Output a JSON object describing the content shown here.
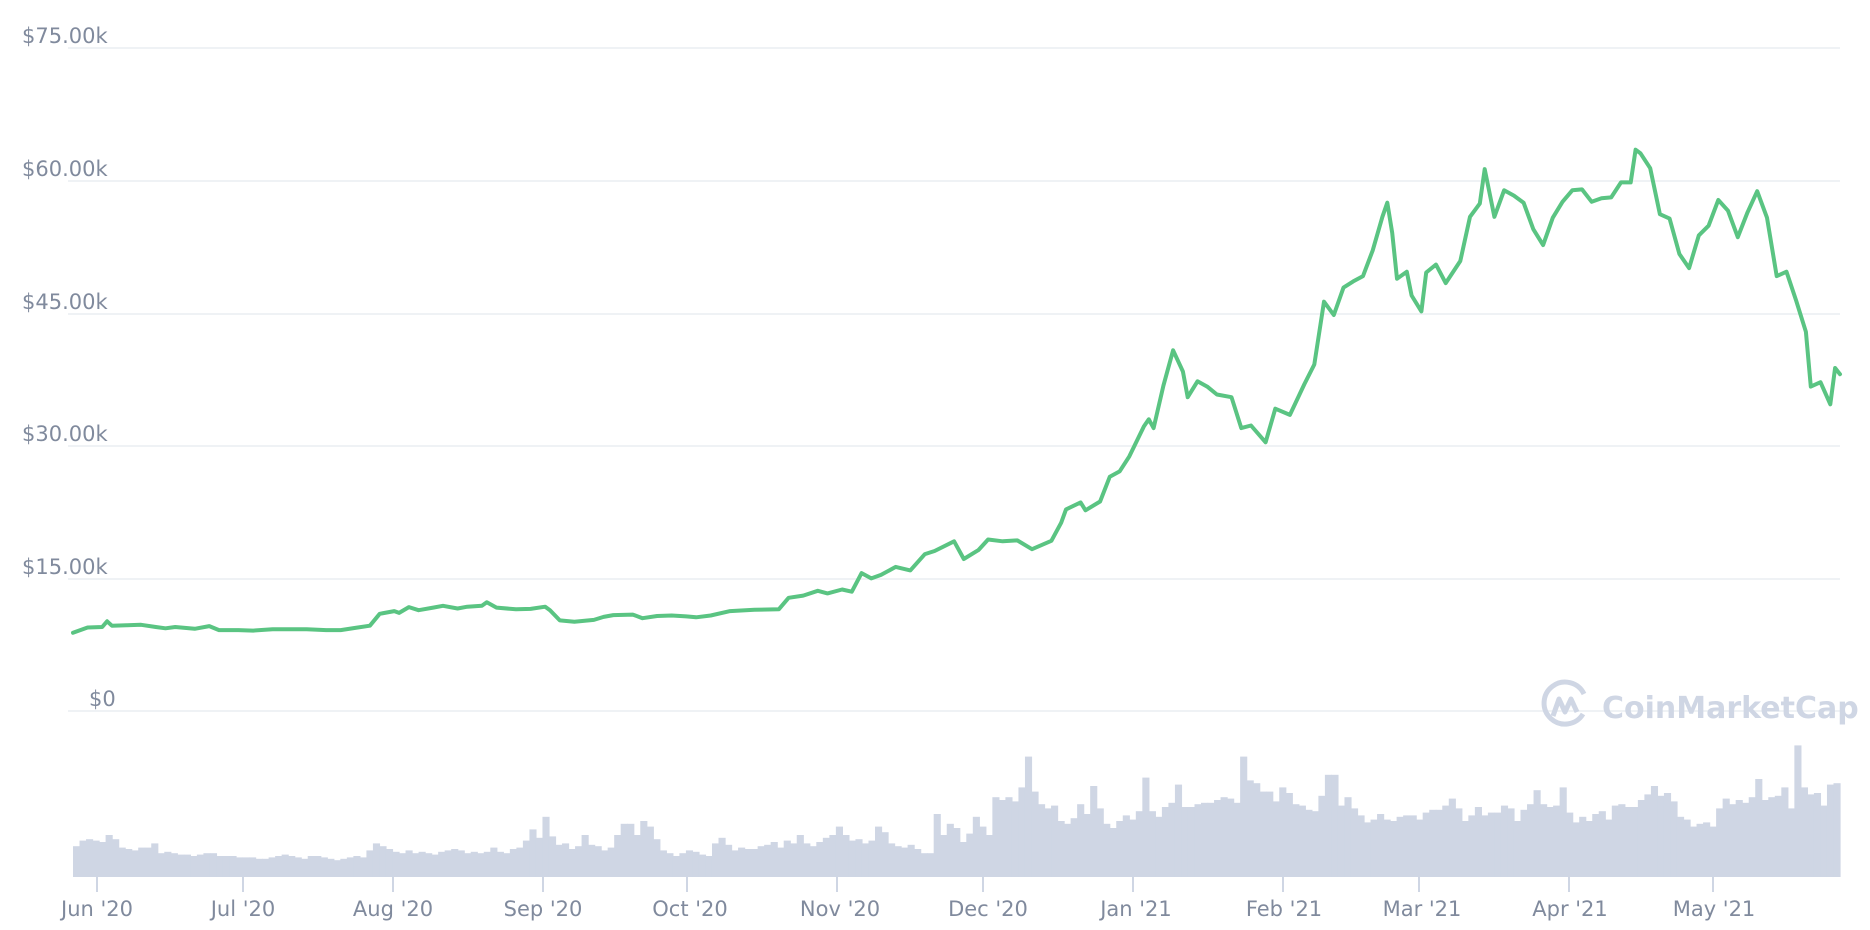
{
  "chart_data": {
    "type": "line",
    "title": "",
    "xlabel": "",
    "ylabel": "",
    "asset_hint": "Price (USD) with volume bars",
    "ylim": [
      0,
      75000
    ],
    "grid": true,
    "legend": null,
    "y_ticks": [
      "$0",
      "$15.00k",
      "$30.00k",
      "$45.00k",
      "$60.00k",
      "$75.00k"
    ],
    "y_tick_values": [
      0,
      15000,
      30000,
      45000,
      60000,
      75000
    ],
    "x_ticks": [
      "Jun '20",
      "Jul '20",
      "Aug '20",
      "Sep '20",
      "Oct '20",
      "Nov '20",
      "Dec '20",
      "Jan '21",
      "Feb '21",
      "Mar '21",
      "Apr '21",
      "May '21"
    ],
    "x_range": [
      "2020-05-27",
      "2021-05-25"
    ],
    "series": [
      {
        "name": "Price",
        "color": "#5ac482",
        "points": [
          [
            "2020-05-27",
            8850
          ],
          [
            "2020-05-30",
            9450
          ],
          [
            "2020-06-02",
            9500
          ],
          [
            "2020-06-03",
            10150
          ],
          [
            "2020-06-04",
            9650
          ],
          [
            "2020-06-07",
            9700
          ],
          [
            "2020-06-10",
            9750
          ],
          [
            "2020-06-13",
            9500
          ],
          [
            "2020-06-15",
            9350
          ],
          [
            "2020-06-17",
            9500
          ],
          [
            "2020-06-21",
            9300
          ],
          [
            "2020-06-24",
            9600
          ],
          [
            "2020-06-26",
            9150
          ],
          [
            "2020-06-30",
            9150
          ],
          [
            "2020-07-03",
            9100
          ],
          [
            "2020-07-07",
            9250
          ],
          [
            "2020-07-10",
            9250
          ],
          [
            "2020-07-14",
            9250
          ],
          [
            "2020-07-18",
            9150
          ],
          [
            "2020-07-21",
            9150
          ],
          [
            "2020-07-24",
            9400
          ],
          [
            "2020-07-27",
            9650
          ],
          [
            "2020-07-29",
            11000
          ],
          [
            "2020-08-01",
            11300
          ],
          [
            "2020-08-02",
            11100
          ],
          [
            "2020-08-04",
            11750
          ],
          [
            "2020-08-06",
            11400
          ],
          [
            "2020-08-09",
            11700
          ],
          [
            "2020-08-11",
            11900
          ],
          [
            "2020-08-14",
            11600
          ],
          [
            "2020-08-16",
            11800
          ],
          [
            "2020-08-19",
            11900
          ],
          [
            "2020-08-20",
            12300
          ],
          [
            "2020-08-22",
            11700
          ],
          [
            "2020-08-26",
            11500
          ],
          [
            "2020-08-29",
            11550
          ],
          [
            "2020-09-01",
            11800
          ],
          [
            "2020-09-02",
            11400
          ],
          [
            "2020-09-04",
            10250
          ],
          [
            "2020-09-07",
            10100
          ],
          [
            "2020-09-11",
            10300
          ],
          [
            "2020-09-13",
            10650
          ],
          [
            "2020-09-15",
            10850
          ],
          [
            "2020-09-19",
            10900
          ],
          [
            "2020-09-21",
            10500
          ],
          [
            "2020-09-24",
            10750
          ],
          [
            "2020-09-27",
            10800
          ],
          [
            "2020-09-30",
            10700
          ],
          [
            "2020-10-02",
            10600
          ],
          [
            "2020-10-05",
            10800
          ],
          [
            "2020-10-09",
            11300
          ],
          [
            "2020-10-14",
            11450
          ],
          [
            "2020-10-19",
            11500
          ],
          [
            "2020-10-21",
            12800
          ],
          [
            "2020-10-24",
            13050
          ],
          [
            "2020-10-27",
            13600
          ],
          [
            "2020-10-29",
            13300
          ],
          [
            "2020-11-01",
            13750
          ],
          [
            "2020-11-03",
            13500
          ],
          [
            "2020-11-05",
            15600
          ],
          [
            "2020-11-07",
            15000
          ],
          [
            "2020-11-09",
            15400
          ],
          [
            "2020-11-12",
            16300
          ],
          [
            "2020-11-15",
            15900
          ],
          [
            "2020-11-18",
            17750
          ],
          [
            "2020-11-20",
            18100
          ],
          [
            "2020-11-24",
            19200
          ],
          [
            "2020-11-26",
            17200
          ],
          [
            "2020-11-29",
            18200
          ],
          [
            "2020-12-01",
            19400
          ],
          [
            "2020-12-04",
            19200
          ],
          [
            "2020-12-07",
            19300
          ],
          [
            "2020-12-10",
            18300
          ],
          [
            "2020-12-14",
            19250
          ],
          [
            "2020-12-16",
            21300
          ],
          [
            "2020-12-17",
            22800
          ],
          [
            "2020-12-20",
            23600
          ],
          [
            "2020-12-21",
            22700
          ],
          [
            "2020-12-24",
            23700
          ],
          [
            "2020-12-26",
            26500
          ],
          [
            "2020-12-28",
            27100
          ],
          [
            "2020-12-30",
            28800
          ],
          [
            "2021-01-02",
            32200
          ],
          [
            "2021-01-03",
            33000
          ],
          [
            "2021-01-04",
            32000
          ],
          [
            "2021-01-06",
            36800
          ],
          [
            "2021-01-08",
            40800
          ],
          [
            "2021-01-10",
            38400
          ],
          [
            "2021-01-11",
            35500
          ],
          [
            "2021-01-13",
            37300
          ],
          [
            "2021-01-15",
            36700
          ],
          [
            "2021-01-17",
            35800
          ],
          [
            "2021-01-20",
            35500
          ],
          [
            "2021-01-22",
            32000
          ],
          [
            "2021-01-24",
            32300
          ],
          [
            "2021-01-27",
            30400
          ],
          [
            "2021-01-29",
            34200
          ],
          [
            "2021-02-01",
            33500
          ],
          [
            "2021-02-04",
            37000
          ],
          [
            "2021-02-06",
            39200
          ],
          [
            "2021-02-08",
            46300
          ],
          [
            "2021-02-10",
            44800
          ],
          [
            "2021-02-12",
            47900
          ],
          [
            "2021-02-14",
            48600
          ],
          [
            "2021-02-16",
            49200
          ],
          [
            "2021-02-18",
            52100
          ],
          [
            "2021-02-20",
            55900
          ],
          [
            "2021-02-21",
            57500
          ],
          [
            "2021-02-22",
            54100
          ],
          [
            "2021-02-23",
            48900
          ],
          [
            "2021-02-25",
            49700
          ],
          [
            "2021-02-26",
            47000
          ],
          [
            "2021-02-28",
            45200
          ],
          [
            "2021-03-01",
            49600
          ],
          [
            "2021-03-03",
            50500
          ],
          [
            "2021-03-05",
            48400
          ],
          [
            "2021-03-08",
            50900
          ],
          [
            "2021-03-10",
            55900
          ],
          [
            "2021-03-12",
            57400
          ],
          [
            "2021-03-13",
            61300
          ],
          [
            "2021-03-15",
            55900
          ],
          [
            "2021-03-17",
            58900
          ],
          [
            "2021-03-19",
            58300
          ],
          [
            "2021-03-21",
            57500
          ],
          [
            "2021-03-23",
            54500
          ],
          [
            "2021-03-25",
            52700
          ],
          [
            "2021-03-27",
            55800
          ],
          [
            "2021-03-29",
            57600
          ],
          [
            "2021-03-31",
            58900
          ],
          [
            "2021-04-02",
            59000
          ],
          [
            "2021-04-04",
            57600
          ],
          [
            "2021-04-06",
            58000
          ],
          [
            "2021-04-08",
            58100
          ],
          [
            "2021-04-10",
            59800
          ],
          [
            "2021-04-12",
            59800
          ],
          [
            "2021-04-13",
            63500
          ],
          [
            "2021-04-14",
            63100
          ],
          [
            "2021-04-16",
            61400
          ],
          [
            "2021-04-18",
            56200
          ],
          [
            "2021-04-20",
            55700
          ],
          [
            "2021-04-22",
            51700
          ],
          [
            "2021-04-24",
            50100
          ],
          [
            "2021-04-26",
            53800
          ],
          [
            "2021-04-28",
            54900
          ],
          [
            "2021-04-30",
            57800
          ],
          [
            "2021-05-02",
            56600
          ],
          [
            "2021-05-04",
            53600
          ],
          [
            "2021-05-06",
            56400
          ],
          [
            "2021-05-08",
            58800
          ],
          [
            "2021-05-10",
            55800
          ],
          [
            "2021-05-12",
            49200
          ],
          [
            "2021-05-14",
            49700
          ],
          [
            "2021-05-16",
            46400
          ],
          [
            "2021-05-18",
            42900
          ],
          [
            "2021-05-19",
            36700
          ],
          [
            "2021-05-21",
            37200
          ],
          [
            "2021-05-23",
            34700
          ],
          [
            "2021-05-24",
            38800
          ],
          [
            "2021-05-25",
            38100
          ]
        ]
      },
      {
        "name": "Volume",
        "color": "#cfd6e4",
        "type": "bar",
        "relative_values": [
          0.22,
          0.26,
          0.27,
          0.26,
          0.25,
          0.3,
          0.27,
          0.21,
          0.2,
          0.19,
          0.21,
          0.21,
          0.24,
          0.17,
          0.18,
          0.17,
          0.16,
          0.16,
          0.15,
          0.16,
          0.17,
          0.17,
          0.15,
          0.15,
          0.15,
          0.14,
          0.14,
          0.14,
          0.13,
          0.13,
          0.14,
          0.15,
          0.16,
          0.15,
          0.14,
          0.13,
          0.15,
          0.15,
          0.14,
          0.13,
          0.12,
          0.13,
          0.14,
          0.15,
          0.14,
          0.19,
          0.24,
          0.22,
          0.2,
          0.18,
          0.17,
          0.19,
          0.17,
          0.18,
          0.17,
          0.16,
          0.18,
          0.19,
          0.2,
          0.19,
          0.17,
          0.18,
          0.17,
          0.18,
          0.21,
          0.18,
          0.17,
          0.2,
          0.21,
          0.26,
          0.34,
          0.28,
          0.43,
          0.29,
          0.23,
          0.24,
          0.2,
          0.22,
          0.3,
          0.23,
          0.22,
          0.19,
          0.21,
          0.3,
          0.38,
          0.38,
          0.3,
          0.4,
          0.36,
          0.27,
          0.19,
          0.17,
          0.15,
          0.17,
          0.19,
          0.18,
          0.16,
          0.15,
          0.24,
          0.28,
          0.23,
          0.19,
          0.21,
          0.2,
          0.2,
          0.22,
          0.23,
          0.25,
          0.21,
          0.26,
          0.24,
          0.3,
          0.24,
          0.22,
          0.25,
          0.28,
          0.3,
          0.36,
          0.3,
          0.26,
          0.27,
          0.24,
          0.26,
          0.36,
          0.32,
          0.24,
          0.22,
          0.21,
          0.23,
          0.2,
          0.17,
          0.17,
          0.45,
          0.3,
          0.38,
          0.35,
          0.25,
          0.31,
          0.43,
          0.36,
          0.3,
          0.57,
          0.55,
          0.57,
          0.54,
          0.64,
          0.86,
          0.61,
          0.52,
          0.49,
          0.51,
          0.4,
          0.38,
          0.42,
          0.52,
          0.45,
          0.65,
          0.49,
          0.38,
          0.35,
          0.4,
          0.44,
          0.41,
          0.47,
          0.71,
          0.47,
          0.43,
          0.5,
          0.53,
          0.66,
          0.5,
          0.5,
          0.52,
          0.53,
          0.53,
          0.55,
          0.57,
          0.56,
          0.53,
          0.86,
          0.69,
          0.67,
          0.61,
          0.61,
          0.54,
          0.64,
          0.6,
          0.52,
          0.51,
          0.48,
          0.47,
          0.58,
          0.73,
          0.73,
          0.51,
          0.57,
          0.49,
          0.44,
          0.39,
          0.41,
          0.45,
          0.41,
          0.4,
          0.43,
          0.44,
          0.44,
          0.41,
          0.46,
          0.48,
          0.48,
          0.51,
          0.56,
          0.49,
          0.4,
          0.44,
          0.5,
          0.44,
          0.46,
          0.46,
          0.51,
          0.49,
          0.4,
          0.48,
          0.52,
          0.62,
          0.52,
          0.5,
          0.51,
          0.64,
          0.46,
          0.39,
          0.43,
          0.4,
          0.45,
          0.47,
          0.41,
          0.51,
          0.52,
          0.5,
          0.5,
          0.55,
          0.59,
          0.65,
          0.58,
          0.6,
          0.54,
          0.43,
          0.41,
          0.36,
          0.38,
          0.39,
          0.36,
          0.49,
          0.56,
          0.52,
          0.55,
          0.53,
          0.57,
          0.7,
          0.55,
          0.57,
          0.58,
          0.64,
          0.49,
          0.94,
          0.64,
          0.59,
          0.6,
          0.51,
          0.66,
          0.67
        ]
      }
    ]
  },
  "axes": {
    "y_labels": [
      "$75.00k",
      "$60.00k",
      "$45.00k",
      "$30.00k",
      "$15.00k",
      "$0"
    ],
    "x_labels": [
      "Jun '20",
      "Jul '20",
      "Aug '20",
      "Sep '20",
      "Oct '20",
      "Nov '20",
      "Dec '20",
      "Jan '21",
      "Feb '21",
      "Mar '21",
      "Apr '21",
      "May '21"
    ]
  },
  "watermark": {
    "text": "CoinMarketCap",
    "icon": "coinmarketcap-logo-icon"
  },
  "colors": {
    "line": "#5ac482",
    "volume": "#cfd6e4",
    "grid": "#eff2f5",
    "axis_text": "#808a9d"
  }
}
